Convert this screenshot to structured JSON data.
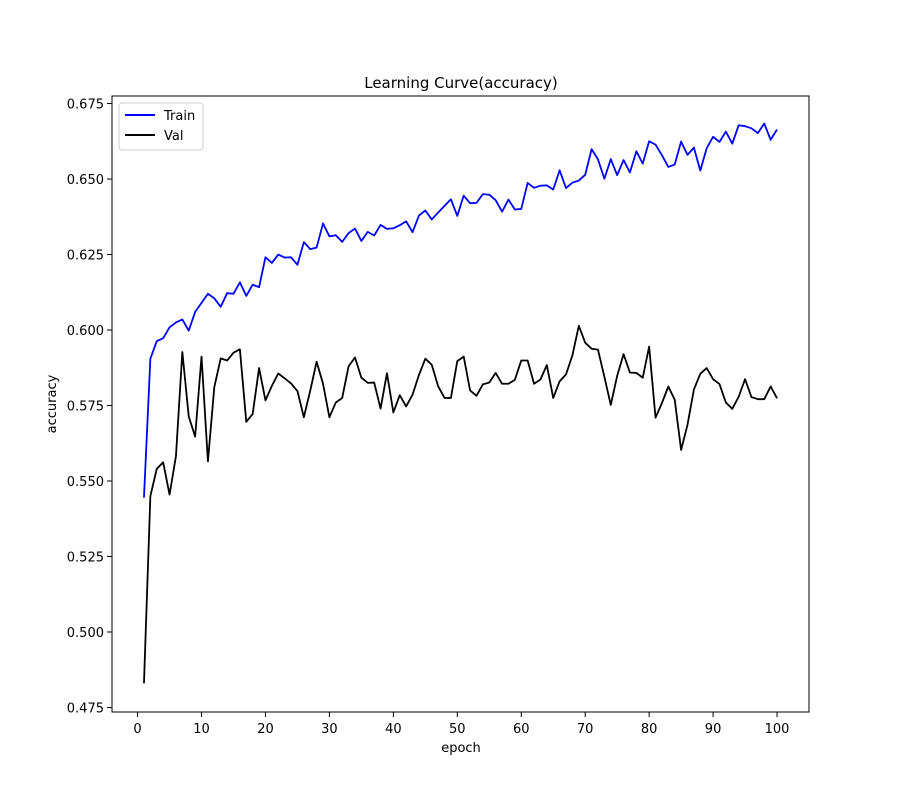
{
  "chart_data": {
    "type": "line",
    "title": "Learning Curve(accuracy)",
    "xlabel": "epoch",
    "ylabel": "accuracy",
    "xlim": [
      -4,
      105
    ],
    "ylim": [
      0.4735,
      0.6775
    ],
    "xticks": [
      0,
      10,
      20,
      30,
      40,
      50,
      60,
      70,
      80,
      90,
      100
    ],
    "yticks": [
      0.475,
      0.5,
      0.525,
      0.55,
      0.575,
      0.6,
      0.625,
      0.65,
      0.675
    ],
    "xtick_labels": [
      "0",
      "10",
      "20",
      "30",
      "40",
      "50",
      "60",
      "70",
      "80",
      "90",
      "100"
    ],
    "ytick_labels": [
      "0.475",
      "0.500",
      "0.525",
      "0.550",
      "0.575",
      "0.600",
      "0.625",
      "0.650",
      "0.675"
    ],
    "legend_position": "upper-left",
    "grid": false,
    "x": [
      1,
      2,
      3,
      4,
      5,
      6,
      7,
      8,
      9,
      10,
      11,
      12,
      13,
      14,
      15,
      16,
      17,
      18,
      19,
      20,
      21,
      22,
      23,
      24,
      25,
      26,
      27,
      28,
      29,
      30,
      31,
      32,
      33,
      34,
      35,
      36,
      37,
      38,
      39,
      40,
      41,
      42,
      43,
      44,
      45,
      46,
      47,
      48,
      49,
      50,
      51,
      52,
      53,
      54,
      55,
      56,
      57,
      58,
      59,
      60,
      61,
      62,
      63,
      64,
      65,
      66,
      67,
      68,
      69,
      70,
      71,
      72,
      73,
      74,
      75,
      76,
      77,
      78,
      79,
      80,
      81,
      82,
      83,
      84,
      85,
      86,
      87,
      88,
      89,
      90,
      91,
      92,
      93,
      94,
      95,
      96,
      97,
      98,
      99,
      100
    ],
    "series": [
      {
        "name": "Train",
        "color": "#0000ff",
        "values": [
          0.5445,
          0.5905,
          0.5963,
          0.5973,
          0.6009,
          0.6025,
          0.6035,
          0.5998,
          0.606,
          0.609,
          0.612,
          0.6105,
          0.6077,
          0.6122,
          0.612,
          0.6158,
          0.6113,
          0.615,
          0.6142,
          0.6241,
          0.6222,
          0.625,
          0.624,
          0.6241,
          0.6216,
          0.6291,
          0.6268,
          0.6273,
          0.6353,
          0.631,
          0.6314,
          0.6292,
          0.6321,
          0.6336,
          0.6295,
          0.6325,
          0.6313,
          0.6348,
          0.6335,
          0.6337,
          0.6347,
          0.636,
          0.6324,
          0.6379,
          0.6396,
          0.6366,
          0.6389,
          0.6411,
          0.6433,
          0.6378,
          0.6445,
          0.642,
          0.6421,
          0.645,
          0.6448,
          0.643,
          0.6392,
          0.6432,
          0.6399,
          0.6401,
          0.6487,
          0.6471,
          0.6478,
          0.6479,
          0.6465,
          0.6529,
          0.647,
          0.6488,
          0.6495,
          0.6514,
          0.6599,
          0.6565,
          0.6501,
          0.6566,
          0.6513,
          0.6563,
          0.6522,
          0.6592,
          0.6551,
          0.6625,
          0.6614,
          0.6579,
          0.654,
          0.6548,
          0.6624,
          0.658,
          0.6604,
          0.6528,
          0.6602,
          0.664,
          0.6623,
          0.6657,
          0.6617,
          0.6678,
          0.6675,
          0.6668,
          0.6652,
          0.6684,
          0.663,
          0.6664
        ]
      },
      {
        "name": "Val",
        "color": "#000000",
        "values": [
          0.483,
          0.545,
          0.554,
          0.5562,
          0.5455,
          0.5582,
          0.5927,
          0.5714,
          0.5647,
          0.5912,
          0.5565,
          0.5811,
          0.5906,
          0.5899,
          0.5925,
          0.5936,
          0.5696,
          0.5722,
          0.5874,
          0.5767,
          0.5815,
          0.5856,
          0.584,
          0.5823,
          0.5798,
          0.5711,
          0.5799,
          0.5895,
          0.5822,
          0.5711,
          0.576,
          0.5775,
          0.588,
          0.5909,
          0.5842,
          0.5825,
          0.5826,
          0.574,
          0.5857,
          0.5727,
          0.5784,
          0.5747,
          0.5786,
          0.5851,
          0.5905,
          0.5885,
          0.5814,
          0.5775,
          0.5775,
          0.5897,
          0.5912,
          0.58,
          0.5782,
          0.582,
          0.5826,
          0.5858,
          0.5822,
          0.5822,
          0.5835,
          0.5899,
          0.5899,
          0.5822,
          0.5836,
          0.5884,
          0.5775,
          0.583,
          0.5853,
          0.5916,
          0.6014,
          0.5958,
          0.5938,
          0.5935,
          0.5845,
          0.5752,
          0.5848,
          0.592,
          0.5859,
          0.5858,
          0.5842,
          0.5945,
          0.571,
          0.5758,
          0.5813,
          0.5769,
          0.5603,
          0.5686,
          0.5803,
          0.5855,
          0.5874,
          0.5837,
          0.5821,
          0.576,
          0.5739,
          0.5779,
          0.5837,
          0.5778,
          0.5771,
          0.5771,
          0.5813,
          0.5774
        ]
      }
    ]
  }
}
